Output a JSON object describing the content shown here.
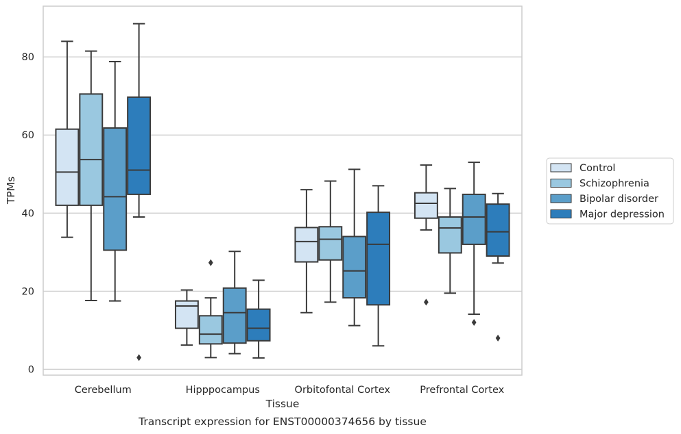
{
  "chart_data": {
    "type": "box",
    "xlabel": "Tissue",
    "ylabel": "TPMs",
    "caption": "Transcript expression for ENST00000374656 by tissue",
    "ylim": [
      -1.5,
      93
    ],
    "yticks": [
      0,
      20,
      40,
      60,
      80
    ],
    "grid": "horizontal",
    "legend_position": "right",
    "categories": [
      "Cerebellum",
      "Hipppocampus",
      "Orbitofontal Cortex",
      "Prefrontal Cortex"
    ],
    "series": [
      {
        "name": "Control",
        "color": "#d3e4f3",
        "boxes": [
          {
            "whisker_low": 33.8,
            "q1": 42.0,
            "median": 50.5,
            "q3": 61.5,
            "whisker_high": 84.0,
            "outliers": []
          },
          {
            "whisker_low": 6.2,
            "q1": 10.5,
            "median": 16.2,
            "q3": 17.5,
            "whisker_high": 20.3,
            "outliers": []
          },
          {
            "whisker_low": 14.5,
            "q1": 27.5,
            "median": 32.7,
            "q3": 36.3,
            "whisker_high": 46.0,
            "outliers": []
          },
          {
            "whisker_low": 35.7,
            "q1": 38.7,
            "median": 42.5,
            "q3": 45.2,
            "whisker_high": 52.3,
            "outliers": [
              17.2
            ]
          }
        ]
      },
      {
        "name": "Schizophrenia",
        "color": "#9ac8e0",
        "boxes": [
          {
            "whisker_low": 17.6,
            "q1": 42.0,
            "median": 53.7,
            "q3": 70.5,
            "whisker_high": 81.5,
            "outliers": []
          },
          {
            "whisker_low": 3.0,
            "q1": 6.5,
            "median": 9.0,
            "q3": 13.7,
            "whisker_high": 18.3,
            "outliers": [
              27.3
            ]
          },
          {
            "whisker_low": 17.2,
            "q1": 28.0,
            "median": 33.3,
            "q3": 36.5,
            "whisker_high": 48.2,
            "outliers": []
          },
          {
            "whisker_low": 19.5,
            "q1": 29.8,
            "median": 36.2,
            "q3": 39.0,
            "whisker_high": 46.3,
            "outliers": []
          }
        ]
      },
      {
        "name": "Bipolar disorder",
        "color": "#5b9ec9",
        "boxes": [
          {
            "whisker_low": 17.5,
            "q1": 30.5,
            "median": 44.2,
            "q3": 61.8,
            "whisker_high": 78.8,
            "outliers": []
          },
          {
            "whisker_low": 4.0,
            "q1": 6.7,
            "median": 14.5,
            "q3": 20.8,
            "whisker_high": 30.2,
            "outliers": []
          },
          {
            "whisker_low": 11.2,
            "q1": 18.3,
            "median": 25.2,
            "q3": 34.0,
            "whisker_high": 51.2,
            "outliers": []
          },
          {
            "whisker_low": 14.1,
            "q1": 32.0,
            "median": 39.0,
            "q3": 44.8,
            "whisker_high": 53.0,
            "outliers": [
              12.0
            ]
          }
        ]
      },
      {
        "name": "Major depression",
        "color": "#2d7dbb",
        "boxes": [
          {
            "whisker_low": 39.0,
            "q1": 44.8,
            "median": 51.0,
            "q3": 69.7,
            "whisker_high": 88.5,
            "outliers": [
              3.0
            ]
          },
          {
            "whisker_low": 2.9,
            "q1": 7.3,
            "median": 10.5,
            "q3": 15.4,
            "whisker_high": 22.8,
            "outliers": []
          },
          {
            "whisker_low": 6.0,
            "q1": 16.5,
            "median": 32.0,
            "q3": 40.2,
            "whisker_high": 47.0,
            "outliers": []
          },
          {
            "whisker_low": 27.2,
            "q1": 29.0,
            "median": 35.2,
            "q3": 42.3,
            "whisker_high": 45.0,
            "outliers": [
              8.0
            ]
          }
        ]
      }
    ]
  }
}
